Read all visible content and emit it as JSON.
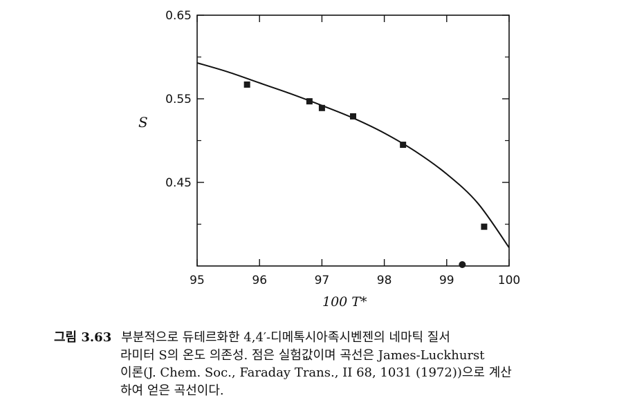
{
  "chart_data": {
    "type": "scatter",
    "title": "",
    "xlabel": "100 T*",
    "ylabel": "S",
    "xlim": [
      95,
      100
    ],
    "ylim": [
      0.35,
      0.65
    ],
    "xticks": [
      95,
      96,
      97,
      98,
      99,
      100
    ],
    "yticks": [
      0.45,
      0.55,
      0.65
    ],
    "ytick_labels": [
      "0.45",
      "0.55",
      "0.65"
    ],
    "xtick_labels": [
      "95",
      "96",
      "97",
      "98",
      "99",
      "100"
    ],
    "grid": false,
    "points": {
      "name": "experimental",
      "marker": "square",
      "x": [
        95.8,
        96.8,
        97.0,
        97.5,
        98.3,
        99.6
      ],
      "y": [
        0.567,
        0.547,
        0.539,
        0.529,
        0.495,
        0.397
      ]
    },
    "curve": {
      "name": "James-Luckhurst theory",
      "x": [
        95.0,
        95.5,
        96.0,
        96.5,
        97.0,
        97.5,
        98.0,
        98.5,
        99.0,
        99.5,
        100.0
      ],
      "y": [
        0.593,
        0.582,
        0.569,
        0.556,
        0.542,
        0.527,
        0.509,
        0.487,
        0.46,
        0.425,
        0.372
      ]
    },
    "colors": {
      "axis": "#111111",
      "marker": "#1a1a1a",
      "curve": "#111111"
    }
  },
  "caption": {
    "label": "그림 3.63",
    "lines": [
      "부분적으로 듀테르화한 4,4′-디메톡시아족시벤젠의 네마틱 질서",
      "라미터 S의 온도 의존성. 점은 실험값이며 곡선은 James-Luckhurst",
      "이론(J. Chem. Soc., Faraday Trans., II 68, 1031 (1972))으로 계산",
      "하여 얻은 곡선이다."
    ]
  }
}
